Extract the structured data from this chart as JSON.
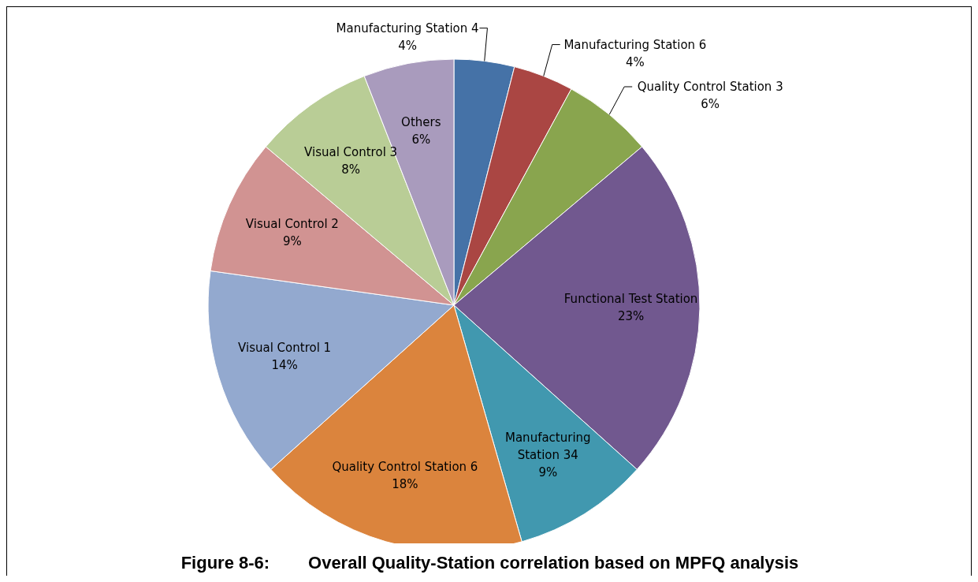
{
  "chart_data": {
    "type": "pie",
    "title": "Figure 8-6:        Overall Quality-Station correlation based on MPFQ analysis",
    "categories": [
      "Manufacturing Station 4",
      "Manufacturing  Station 6",
      "Quality Control Station 3",
      "Functional Test Station",
      "Manufacturing Station 34",
      "Quality Control Station 6",
      "Visual Control 1",
      "Visual Control 2",
      "Visual Control 3",
      "Others"
    ],
    "values": [
      4,
      4,
      6,
      23,
      9,
      18,
      14,
      9,
      8,
      6
    ],
    "value_labels": [
      "4%",
      "4%",
      "6%",
      "23%",
      "9%",
      "18%",
      "14%",
      "9%",
      "8%",
      "6%"
    ],
    "colors": [
      "#4572a7",
      "#aa4643",
      "#89a54e",
      "#71588f",
      "#4198af",
      "#db843d",
      "#93a9cf",
      "#d19392",
      "#b9cd96",
      "#a99bbd"
    ]
  }
}
